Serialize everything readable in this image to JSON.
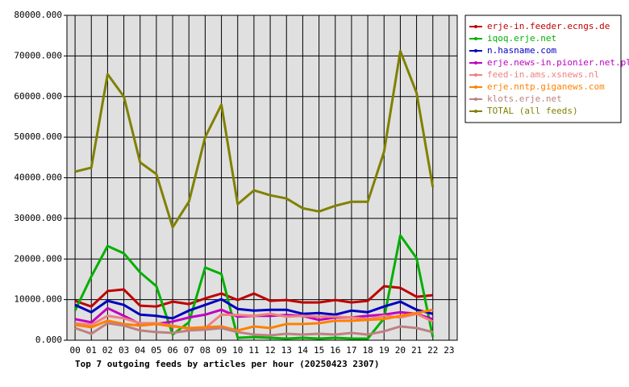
{
  "chart_data": {
    "type": "line",
    "title": "Top 7 outgoing feeds by articles per hour (20250423 2307)",
    "categories": [
      "00",
      "01",
      "02",
      "03",
      "04",
      "05",
      "06",
      "07",
      "08",
      "09",
      "10",
      "11",
      "12",
      "13",
      "14",
      "15",
      "16",
      "17",
      "18",
      "19",
      "20",
      "21",
      "22",
      "23"
    ],
    "ylim": [
      0,
      80000
    ],
    "yticks": [
      {
        "value": 0,
        "label": "0.000"
      },
      {
        "value": 10000,
        "label": "10000.000"
      },
      {
        "value": 20000,
        "label": "20000.000"
      },
      {
        "value": 30000,
        "label": "30000.000"
      },
      {
        "value": 40000,
        "label": "40000.000"
      },
      {
        "value": 50000,
        "label": "50000.000"
      },
      {
        "value": 60000,
        "label": "60000.000"
      },
      {
        "value": 70000,
        "label": "70000.000"
      },
      {
        "value": 80000,
        "label": "80000.000"
      }
    ],
    "grid": true,
    "legend": "right",
    "series": [
      {
        "name": "erje-in.feeder.ecngs.de",
        "color": "#c00000",
        "values": [
          9700,
          8300,
          12100,
          12500,
          8500,
          8300,
          9500,
          8900,
          10300,
          11500,
          9900,
          11500,
          9700,
          9900,
          9300,
          9300,
          9900,
          9300,
          9700,
          13300,
          12900,
          10700,
          11100,
          null
        ]
      },
      {
        "name": "iqoq.erje.net",
        "color": "#00b000",
        "values": [
          7300,
          15700,
          23200,
          21400,
          16700,
          13300,
          1400,
          4400,
          17900,
          16300,
          600,
          800,
          600,
          400,
          600,
          400,
          600,
          400,
          400,
          5400,
          25800,
          20200,
          800,
          null
        ]
      },
      {
        "name": "n.hasname.com",
        "color": "#0000c0",
        "values": [
          8700,
          6900,
          9700,
          8700,
          6300,
          6000,
          5400,
          7300,
          8700,
          10100,
          7700,
          7300,
          7500,
          7500,
          6500,
          6700,
          6300,
          7300,
          6900,
          8300,
          9500,
          7500,
          6500,
          null
        ]
      },
      {
        "name": "erje.news-in.pionier.net.pl",
        "color": "#c000c0",
        "values": [
          5200,
          4400,
          7900,
          6000,
          4000,
          4000,
          4600,
          5600,
          6300,
          7500,
          5800,
          6000,
          6000,
          6200,
          6000,
          5000,
          5600,
          5600,
          6000,
          6300,
          6900,
          6500,
          5200,
          null
        ]
      },
      {
        "name": "feed-in.ams.xsnews.nl",
        "color": "#f08080",
        "values": [
          4200,
          3800,
          6000,
          5400,
          4200,
          4200,
          3600,
          2800,
          3000,
          6300,
          6200,
          6000,
          6500,
          5800,
          6000,
          5800,
          5800,
          5600,
          5200,
          6000,
          5600,
          6500,
          4600,
          null
        ]
      },
      {
        "name": "erje.nntp.giganews.com",
        "color": "#ff8000",
        "values": [
          3800,
          3200,
          4800,
          4000,
          3600,
          4000,
          3400,
          3000,
          3200,
          3400,
          2400,
          3400,
          3000,
          4000,
          4000,
          4200,
          4800,
          4800,
          5000,
          5200,
          6000,
          6700,
          7500,
          null
        ]
      },
      {
        "name": "klots.erje.net",
        "color": "#c08080",
        "values": [
          3000,
          1600,
          4200,
          3600,
          2400,
          2000,
          1800,
          2400,
          2600,
          3000,
          2000,
          1400,
          1200,
          1600,
          1400,
          1600,
          1400,
          1800,
          1400,
          2200,
          3400,
          3000,
          2000,
          null
        ]
      },
      {
        "name": "TOTAL (all feeds)",
        "color": "#808000",
        "values": [
          41500,
          42500,
          65500,
          60000,
          43800,
          40900,
          27800,
          34100,
          50000,
          58000,
          33500,
          36900,
          35700,
          34900,
          32500,
          31700,
          33100,
          34100,
          34100,
          46400,
          71200,
          60900,
          37700,
          null
        ]
      }
    ]
  }
}
